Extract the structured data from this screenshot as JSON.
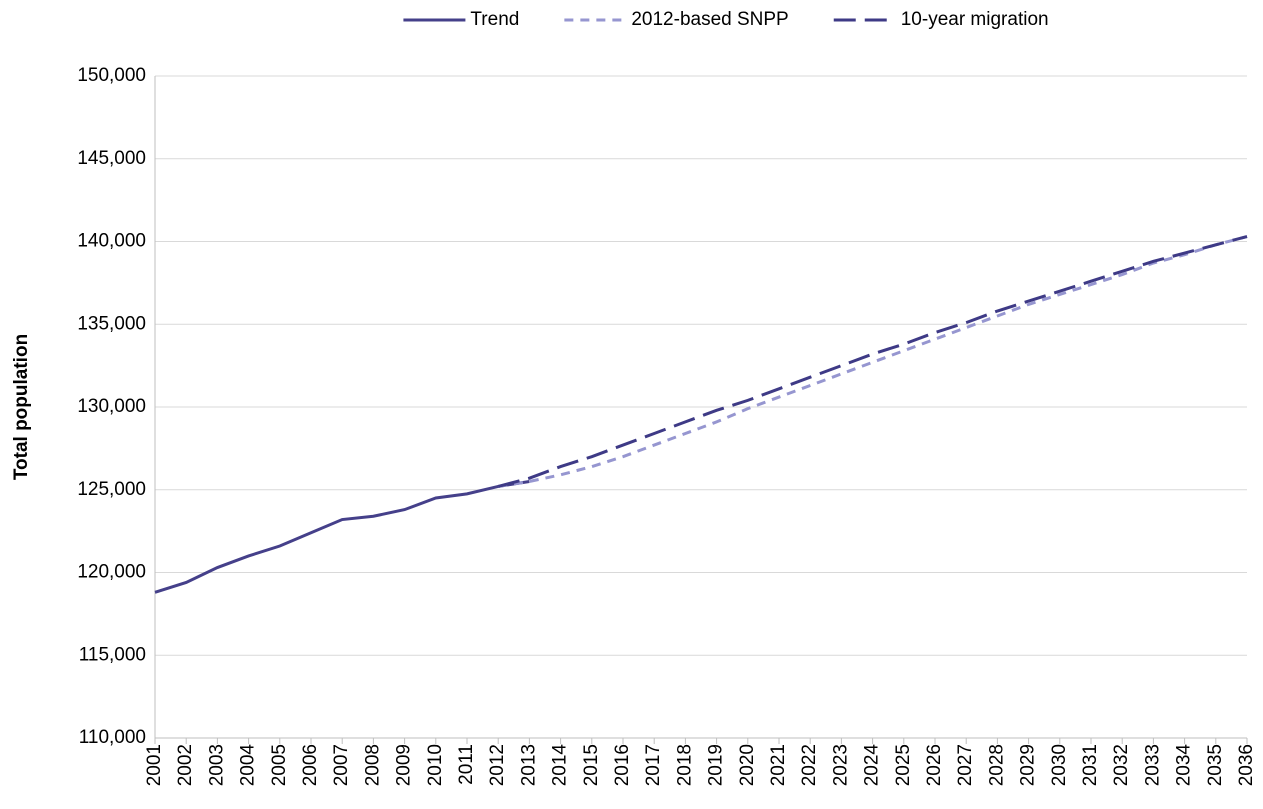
{
  "chart_data": {
    "type": "line",
    "y_label": "Total population",
    "categories": [
      "2001",
      "2002",
      "2003",
      "2004",
      "2005",
      "2006",
      "2007",
      "2008",
      "2009",
      "2010",
      "2011",
      "2012",
      "2013",
      "2014",
      "2015",
      "2016",
      "2017",
      "2018",
      "2019",
      "2020",
      "2021",
      "2022",
      "2023",
      "2024",
      "2025",
      "2026",
      "2027",
      "2028",
      "2029",
      "2030",
      "2031",
      "2032",
      "2033",
      "2034",
      "2035",
      "2036"
    ],
    "series": [
      {
        "name": "Trend",
        "color": "#45408a",
        "line_style": "solid",
        "values": [
          118800,
          119400,
          120300,
          121000,
          121600,
          122400,
          123200,
          123400,
          123800,
          124500,
          124750,
          125200,
          125500,
          null,
          null,
          null,
          null,
          null,
          null,
          null,
          null,
          null,
          null,
          null,
          null,
          null,
          null,
          null,
          null,
          null,
          null,
          null,
          null,
          null,
          null,
          null
        ]
      },
      {
        "name": "2012-based SNPP",
        "color": "#9696d0",
        "line_style": "dashed",
        "values": [
          null,
          null,
          null,
          null,
          null,
          null,
          null,
          null,
          null,
          null,
          null,
          125200,
          125500,
          125900,
          126400,
          127000,
          127700,
          128400,
          129100,
          129900,
          130600,
          131300,
          132000,
          132700,
          133400,
          134100,
          134800,
          135500,
          136200,
          136800,
          137400,
          138000,
          138700,
          139200,
          139800,
          140300
        ]
      },
      {
        "name": "10-year migration",
        "color": "#3e3a86",
        "line_style": "long-dashed",
        "values": [
          null,
          null,
          null,
          null,
          null,
          null,
          null,
          null,
          null,
          null,
          null,
          125200,
          125700,
          126400,
          127000,
          127700,
          128400,
          129100,
          129800,
          130400,
          131100,
          131800,
          132500,
          133200,
          133800,
          134500,
          135100,
          135800,
          136400,
          137000,
          137600,
          138200,
          138800,
          139300,
          139800,
          140300
        ]
      }
    ],
    "ylim": [
      110000,
      150000
    ],
    "yticks": [
      {
        "value": 110000,
        "label": "110,000"
      },
      {
        "value": 115000,
        "label": "115,000"
      },
      {
        "value": 120000,
        "label": "120,000"
      },
      {
        "value": 125000,
        "label": "125,000"
      },
      {
        "value": 130000,
        "label": "130,000"
      },
      {
        "value": 135000,
        "label": "135,000"
      },
      {
        "value": 140000,
        "label": "140,000"
      },
      {
        "value": 145000,
        "label": "145,000"
      },
      {
        "value": 150000,
        "label": "150,000"
      }
    ],
    "grid": true,
    "legend": "top"
  }
}
